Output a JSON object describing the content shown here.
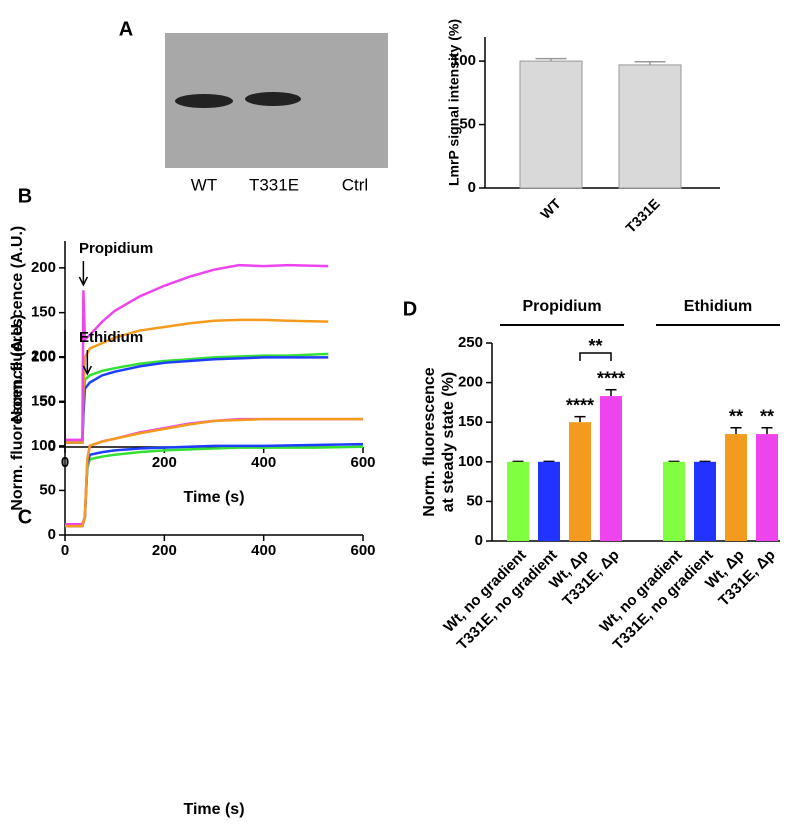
{
  "blot": {
    "panel": "A",
    "lanes": [
      "WT",
      "T331E",
      "Ctrl"
    ]
  },
  "chart_data": [
    {
      "type": "bar",
      "ylabel": "LmrP signal intensity (%)",
      "categories": [
        "WT",
        "T331E"
      ],
      "values": [
        100,
        97
      ],
      "errors": [
        2,
        2.5
      ],
      "color": "#d9d9d9",
      "ylim": [
        0,
        119
      ],
      "yticks": [
        0,
        50,
        100
      ]
    },
    {
      "type": "line",
      "panel": "B",
      "annotation": "Propidium",
      "xlabel": "Time (s)",
      "ylabel": "Norm. fluorescence (A.U.)",
      "x": [
        0,
        30,
        35,
        37,
        40,
        50,
        75,
        100,
        150,
        200,
        250,
        300,
        350,
        400,
        450,
        530
      ],
      "series": [
        {
          "color": "#33e033",
          "values": [
            5,
            5,
            5,
            40,
            75,
            80,
            85,
            88,
            93,
            96,
            98,
            100,
            101,
            102,
            102,
            104
          ]
        },
        {
          "color": "#1f3fff",
          "values": [
            5,
            5,
            5,
            35,
            65,
            72,
            80,
            84,
            90,
            94,
            96,
            98,
            99,
            100,
            100,
            100
          ]
        },
        {
          "color": "#f39a1f",
          "values": [
            5,
            5,
            5,
            60,
            100,
            110,
            116,
            122,
            130,
            134,
            138,
            141,
            142,
            142,
            141,
            140
          ]
        },
        {
          "color": "#ee44ee",
          "values": [
            8,
            8,
            8,
            175,
            120,
            125,
            140,
            152,
            168,
            180,
            190,
            198,
            203,
            202,
            203,
            202
          ]
        }
      ],
      "xlim": [
        0,
        600
      ],
      "xticks": [
        0,
        200,
        400,
        600
      ],
      "ylim": [
        0,
        230
      ],
      "yticks": [
        0,
        50,
        100,
        150,
        200
      ]
    },
    {
      "type": "line",
      "panel": "C",
      "annotation": "Ethidium",
      "xlabel": "Time (s)",
      "ylabel": "Norm. fluorescence (A.U.)",
      "x": [
        0,
        35,
        40,
        45,
        50,
        75,
        100,
        150,
        200,
        250,
        300,
        350,
        400,
        500,
        600
      ],
      "series": [
        {
          "color": "#33e033",
          "values": [
            12,
            12,
            20,
            75,
            85,
            88,
            90,
            93,
            95,
            96,
            97,
            98,
            98,
            98,
            99
          ]
        },
        {
          "color": "#1f3fff",
          "values": [
            10,
            10,
            20,
            80,
            90,
            93,
            95,
            97,
            98,
            99,
            100,
            100,
            100,
            101,
            102
          ]
        },
        {
          "color": "#ee44ee",
          "values": [
            12,
            12,
            20,
            85,
            100,
            105,
            108,
            115,
            120,
            125,
            128,
            130,
            130,
            130,
            130
          ]
        },
        {
          "color": "#f39a1f",
          "values": [
            10,
            10,
            20,
            85,
            100,
            105,
            108,
            114,
            119,
            124,
            128,
            129,
            130,
            130,
            130
          ]
        }
      ],
      "xlim": [
        0,
        600
      ],
      "xticks": [
        0,
        200,
        400,
        600
      ],
      "ylim": [
        0,
        230
      ],
      "yticks": [
        0,
        50,
        100,
        150,
        200
      ]
    },
    {
      "type": "bar",
      "panel": "D",
      "ylabel": [
        "Norm. fluorescence",
        "at steady state (%)"
      ],
      "groups": [
        "Propidium",
        "Ethidium"
      ],
      "comparison": "**",
      "categories": [
        "Wt, no gradient",
        "T331E, no gradient",
        "Wt, Δp",
        "T331E, Δp",
        "Wt, no gradient",
        "T331E, no gradient",
        "Wt, Δp",
        "T331E, Δp"
      ],
      "values": [
        100,
        100,
        150,
        183,
        100,
        100,
        135,
        135
      ],
      "errors": [
        0.5,
        0.5,
        7,
        8,
        0.5,
        0.5,
        8,
        8
      ],
      "significance": [
        null,
        null,
        "****",
        "****",
        null,
        null,
        "**",
        "**"
      ],
      "colors": [
        "#7fff3f",
        "#2233ff",
        "#f39a1f",
        "#ee44ee",
        "#7fff3f",
        "#2233ff",
        "#f39a1f",
        "#ee44ee"
      ],
      "ylim": [
        0,
        250
      ],
      "yticks": [
        0,
        50,
        100,
        150,
        200,
        250
      ]
    }
  ]
}
